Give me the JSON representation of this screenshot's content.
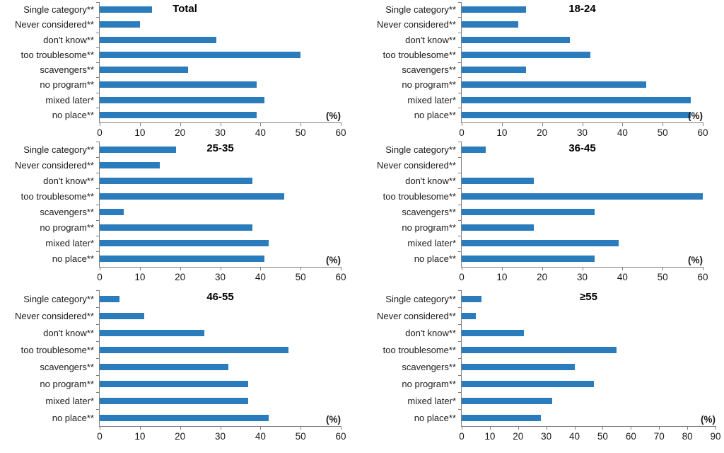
{
  "chart_shared": {
    "type": "bar",
    "orientation": "horizontal",
    "categories": [
      "Single category**",
      "Never considered**",
      "don't know**",
      "too troublesome**",
      "scavengers**",
      "no program**",
      "mixed later*",
      "no place**"
    ],
    "xlabel": "(%)",
    "bar_color": "#2b7cbc",
    "axis_color": "#7f7f7f",
    "grid": "off",
    "legend": "none"
  },
  "chart_data": [
    {
      "title": "Total",
      "xlim": [
        0,
        60
      ],
      "xticks": [
        0,
        10,
        20,
        30,
        40,
        50,
        60
      ],
      "values": [
        13,
        10,
        29,
        50,
        22,
        39,
        41,
        39
      ]
    },
    {
      "title": "18-24",
      "xlim": [
        0,
        60
      ],
      "xticks": [
        0,
        10,
        20,
        30,
        40,
        50,
        60
      ],
      "values": [
        16,
        14,
        27,
        32,
        16,
        46,
        57,
        57
      ]
    },
    {
      "title": "25-35",
      "xlim": [
        0,
        60
      ],
      "xticks": [
        0,
        10,
        20,
        30,
        40,
        50,
        60
      ],
      "values": [
        19,
        15,
        38,
        46,
        6,
        38,
        42,
        41
      ]
    },
    {
      "title": "36-45",
      "xlim": [
        0,
        60
      ],
      "xticks": [
        0,
        10,
        20,
        30,
        40,
        50,
        60
      ],
      "values": [
        6,
        0,
        18,
        60,
        33,
        18,
        39,
        33
      ]
    },
    {
      "title": "46-55",
      "xlim": [
        0,
        60
      ],
      "xticks": [
        0,
        10,
        20,
        30,
        40,
        50,
        60
      ],
      "values": [
        5,
        11,
        26,
        47,
        32,
        37,
        37,
        42
      ]
    },
    {
      "title": "≥55",
      "xlim": [
        0,
        90
      ],
      "xticks": [
        0,
        10,
        20,
        30,
        40,
        50,
        60,
        70,
        80,
        90
      ],
      "values": [
        7,
        5,
        22,
        55,
        40,
        47,
        32,
        28
      ]
    }
  ]
}
